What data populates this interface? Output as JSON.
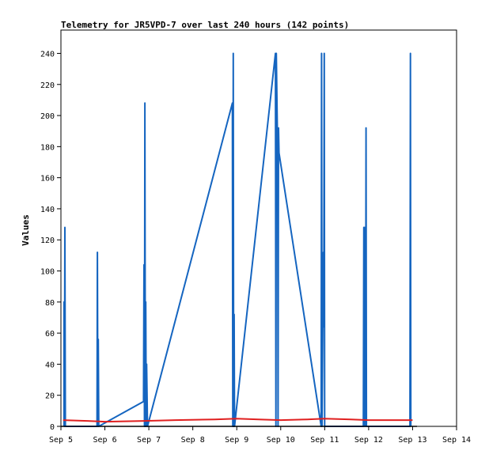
{
  "chart_data": {
    "type": "line",
    "title": "Telemetry for JR5VPD-7 over last 240 hours (142 points)",
    "ylabel": "Values",
    "xlabel": "",
    "ylim": [
      0,
      255
    ],
    "xlim": [
      0,
      9
    ],
    "yticks": [
      0,
      20,
      40,
      60,
      80,
      100,
      120,
      140,
      160,
      180,
      200,
      220,
      240
    ],
    "xticks": [
      {
        "x": 0,
        "label": "Sep 5"
      },
      {
        "x": 1,
        "label": "Sep 6"
      },
      {
        "x": 2,
        "label": "Sep 7"
      },
      {
        "x": 3,
        "label": "Sep 8"
      },
      {
        "x": 4,
        "label": "Sep 9"
      },
      {
        "x": 5,
        "label": "Sep 10"
      },
      {
        "x": 6,
        "label": "Sep 11"
      },
      {
        "x": 7,
        "label": "Sep 12"
      },
      {
        "x": 8,
        "label": "Sep 13"
      },
      {
        "x": 9,
        "label": "Sep 14"
      }
    ],
    "series": [
      {
        "color": "#1565c0",
        "points": [
          [
            0.07,
            0
          ],
          [
            0.07,
            80
          ],
          [
            0.08,
            0
          ],
          [
            0.09,
            128
          ],
          [
            0.1,
            0
          ],
          [
            0.82,
            0
          ],
          [
            0.83,
            112
          ],
          [
            0.84,
            0
          ],
          [
            0.85,
            56
          ],
          [
            0.86,
            0
          ],
          [
            1.88,
            16
          ],
          [
            1.89,
            104
          ],
          [
            1.9,
            0
          ],
          [
            1.91,
            208
          ],
          [
            1.92,
            0
          ],
          [
            1.93,
            80
          ],
          [
            1.94,
            0
          ],
          [
            1.95,
            40
          ],
          [
            1.97,
            0
          ],
          [
            3.9,
            208
          ],
          [
            3.91,
            0
          ],
          [
            3.92,
            240
          ],
          [
            3.93,
            0
          ],
          [
            3.94,
            72
          ],
          [
            3.95,
            0
          ],
          [
            4.88,
            240
          ],
          [
            4.89,
            0
          ],
          [
            4.9,
            240
          ],
          [
            4.93,
            176
          ],
          [
            4.94,
            0
          ],
          [
            4.95,
            192
          ],
          [
            4.96,
            176
          ],
          [
            5.92,
            0
          ],
          [
            5.93,
            240
          ],
          [
            5.94,
            0
          ],
          [
            5.97,
            112
          ],
          [
            5.98,
            64
          ],
          [
            5.99,
            240
          ],
          [
            6.0,
            0
          ],
          [
            6.88,
            0
          ],
          [
            6.89,
            128
          ],
          [
            6.9,
            0
          ],
          [
            6.91,
            128
          ],
          [
            6.93,
            0
          ],
          [
            6.94,
            192
          ],
          [
            6.95,
            0
          ],
          [
            7.94,
            0
          ],
          [
            7.95,
            240
          ],
          [
            7.96,
            0
          ]
        ]
      },
      {
        "color": "#e02020",
        "points": [
          [
            0.05,
            4
          ],
          [
            0.6,
            3.5
          ],
          [
            1.0,
            3
          ],
          [
            1.9,
            3.5
          ],
          [
            2.6,
            4
          ],
          [
            3.5,
            4.5
          ],
          [
            4.0,
            5
          ],
          [
            4.5,
            4.5
          ],
          [
            5.0,
            4
          ],
          [
            5.6,
            4.5
          ],
          [
            6.0,
            5
          ],
          [
            6.6,
            4.5
          ],
          [
            7.0,
            4
          ],
          [
            8.0,
            4
          ]
        ]
      }
    ],
    "grid": false,
    "legend": "none"
  }
}
